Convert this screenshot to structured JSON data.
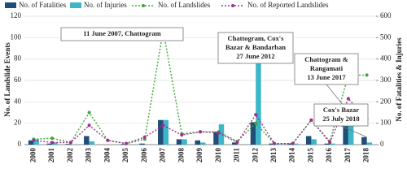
{
  "chart_data": {
    "type": "bar-line",
    "y_label": "No. of Landslide Events",
    "y2_label": "No. of Fatalities & Injuries",
    "categories": [
      "2000",
      "2001",
      "2002",
      "2003",
      "2004",
      "2005",
      "2006",
      "2007",
      "2008",
      "2009",
      "2010",
      "2011",
      "2012",
      "2013",
      "2014",
      "2015",
      "2016",
      "2017",
      "2018"
    ],
    "ylim": [
      0,
      120
    ],
    "yticks": [
      0,
      20,
      40,
      60,
      80,
      100,
      120
    ],
    "y2lim": [
      0,
      600
    ],
    "y2ticks": [
      0,
      100,
      200,
      300,
      400,
      500,
      600
    ],
    "grid": true,
    "series": [
      {
        "name": "No. of Fatalities",
        "kind": "bar",
        "axis": "y2",
        "color": "#1f4e79",
        "values": [
          20,
          5,
          3,
          40,
          0,
          3,
          5,
          115,
          25,
          20,
          60,
          10,
          105,
          5,
          5,
          40,
          5,
          155,
          35
        ]
      },
      {
        "name": "No. of Injuries",
        "kind": "bar",
        "axis": "y2",
        "color": "#3cb6c8",
        "values": [
          25,
          10,
          0,
          15,
          0,
          0,
          0,
          115,
          25,
          10,
          95,
          0,
          425,
          5,
          5,
          25,
          5,
          145,
          10
        ]
      },
      {
        "name": "No. of Landslides",
        "kind": "line",
        "color": "#3aaa35",
        "values": [
          5,
          6,
          2,
          30,
          4,
          1,
          5,
          107,
          10,
          12,
          12,
          3,
          20,
          1,
          1,
          23,
          3,
          65,
          65
        ]
      },
      {
        "name": "No. of Reported Landslides",
        "kind": "line",
        "color": "#a0308f",
        "values": [
          4,
          2,
          2,
          18,
          4,
          1,
          7,
          18,
          9,
          12,
          11,
          2,
          28,
          1,
          1,
          23,
          2,
          43,
          24
        ]
      }
    ],
    "annotations": [
      {
        "lines": [
          "11 June 2007, Chattogram"
        ]
      },
      {
        "lines": [
          "Chattogram, Cox's",
          "Bazar & Bandarban",
          "27 June 2012"
        ]
      },
      {
        "lines": [
          "Chattogram &",
          "Rangamati",
          "13 June 2017"
        ]
      },
      {
        "lines": [
          "Cox's Bazar",
          "25 July 2018"
        ]
      }
    ]
  }
}
